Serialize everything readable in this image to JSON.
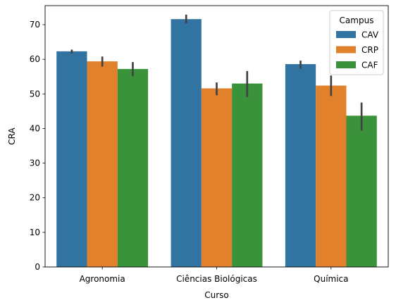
{
  "chart_data": {
    "type": "bar",
    "title": "",
    "xlabel": "Curso",
    "ylabel": "CRA",
    "categories": [
      "Agronomia",
      "Ciências Biológicas",
      "Química"
    ],
    "ylim": [
      0,
      75.5
    ],
    "yticks": [
      0,
      10,
      20,
      30,
      40,
      50,
      60,
      70
    ],
    "grid": false,
    "legend": {
      "title": "Campus",
      "placement": "top-right"
    },
    "series": [
      {
        "name": "CAV",
        "color": "#3274a1",
        "values": [
          62.3,
          71.6,
          58.6
        ],
        "ci": [
          [
            61.7,
            62.8
          ],
          [
            70.4,
            72.9
          ],
          [
            57.3,
            59.6
          ]
        ]
      },
      {
        "name": "CRP",
        "color": "#e1812c",
        "values": [
          59.4,
          51.6,
          52.4
        ],
        "ci": [
          [
            57.9,
            60.8
          ],
          [
            49.6,
            53.3
          ],
          [
            49.4,
            55.3
          ]
        ]
      },
      {
        "name": "CAF",
        "color": "#3a923a",
        "values": [
          57.2,
          53.0,
          43.7
        ],
        "ci": [
          [
            55.1,
            59.2
          ],
          [
            49.1,
            56.6
          ],
          [
            39.4,
            47.5
          ]
        ]
      }
    ],
    "errorbar_color": "#424242"
  }
}
